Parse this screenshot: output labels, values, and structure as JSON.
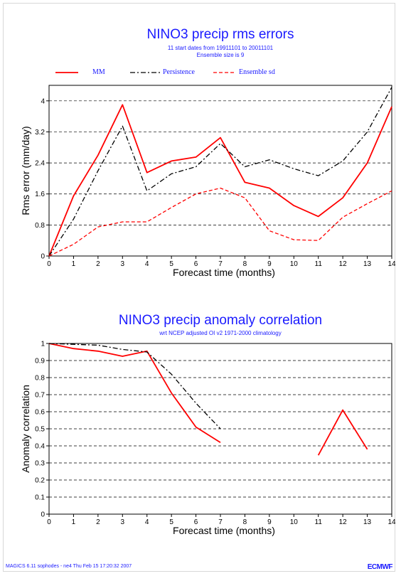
{
  "footer_text": "MAGICS 6.11 sophodes - ne4 Thu Feb 15 17:20:32 2007",
  "brand_text": "ECMWF",
  "colors": {
    "title": "#1a1aff",
    "mm": "#ff0000",
    "persistence": "#000000",
    "ensemble_sd": "#ff0000",
    "grid": "#000000"
  },
  "chart_data": [
    {
      "type": "line",
      "title": "NINO3 precip rms errors",
      "subtitle_lines": [
        "11 start dates from 19911101 to 20011101",
        "Ensemble size is  9"
      ],
      "xlabel": "Forecast time (months)",
      "ylabel": "Rms error (mm/day)",
      "x": [
        0,
        1,
        2,
        3,
        4,
        5,
        6,
        7,
        8,
        9,
        10,
        11,
        12,
        13,
        14
      ],
      "xlim": [
        0,
        14
      ],
      "ylim": [
        0,
        4.4
      ],
      "yticks": [
        0,
        0.8,
        1.6,
        2.4,
        3.2,
        4
      ],
      "ytick_labels": [
        "0",
        "0.8",
        "1.6",
        "2.4",
        "3.2",
        "4"
      ],
      "grid": "horizontal-dashed",
      "legend_position": "top",
      "series": [
        {
          "name": "MM",
          "style": "solid",
          "color": "#ff0000",
          "values": [
            0,
            1.55,
            2.6,
            3.9,
            2.15,
            2.45,
            2.55,
            3.05,
            1.9,
            1.75,
            1.3,
            1.02,
            1.5,
            2.4,
            3.85
          ]
        },
        {
          "name": "Persistence",
          "style": "dashdot",
          "color": "#000000",
          "values": [
            0,
            0.95,
            2.2,
            3.35,
            1.68,
            2.12,
            2.3,
            2.9,
            2.3,
            2.48,
            2.25,
            2.07,
            2.45,
            3.2,
            4.35
          ]
        },
        {
          "name": "Ensemble sd",
          "style": "dashed",
          "color": "#ff0000",
          "values": [
            0,
            0.3,
            0.75,
            0.88,
            0.88,
            1.25,
            1.6,
            1.75,
            1.5,
            0.65,
            0.42,
            0.4,
            1.0,
            1.35,
            1.68
          ]
        }
      ]
    },
    {
      "type": "line",
      "title": "NINO3 precip anomaly correlation",
      "subtitle_lines": [
        "wrt NCEP adjusted OI v2 1971-2000 climatology"
      ],
      "xlabel": "Forecast time (months)",
      "ylabel": "Anomaly correlation",
      "x": [
        0,
        1,
        2,
        3,
        4,
        5,
        6,
        7,
        8,
        9,
        10,
        11,
        12,
        13,
        14
      ],
      "xlim": [
        0,
        14
      ],
      "ylim": [
        0,
        1
      ],
      "yticks": [
        0,
        0.1,
        0.2,
        0.3,
        0.4,
        0.5,
        0.6,
        0.7,
        0.8,
        0.9,
        1
      ],
      "ytick_labels": [
        "0",
        "0.1",
        "0.2",
        "0.3",
        "0.4",
        "0.5",
        "0.6",
        "0.7",
        "0.8",
        "0.9",
        "1"
      ],
      "grid": "horizontal-dashed",
      "series": [
        {
          "name": "MM",
          "style": "solid",
          "color": "#ff0000",
          "values": [
            1.0,
            0.97,
            0.955,
            0.925,
            0.955,
            0.71,
            0.51,
            0.42,
            null,
            null,
            null,
            0.345,
            0.61,
            0.38,
            null
          ]
        },
        {
          "name": "Persistence",
          "style": "dashdot",
          "color": "#000000",
          "values": [
            1.0,
            0.995,
            0.99,
            0.965,
            0.95,
            0.82,
            0.65,
            0.5,
            null,
            null,
            null,
            null,
            null,
            null,
            null
          ]
        }
      ]
    }
  ]
}
